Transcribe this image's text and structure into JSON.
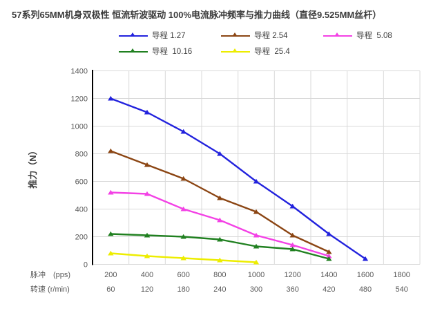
{
  "title": "57系列65MM机身双极性 恒流斩波驱动 100%电流脉冲频率与推力曲线（直径9.525MM丝杆）",
  "chart_data": {
    "type": "line",
    "title": "57系列65MM机身双极性 恒流斩波驱动 100%电流脉冲频率与推力曲线（直径9.525MM丝杆）",
    "ylabel": "推力（N）",
    "ylim": [
      0,
      1400
    ],
    "y_ticks": [
      0,
      200,
      400,
      600,
      800,
      1000,
      1200,
      1400
    ],
    "grid": true,
    "legend_position": "top",
    "x_rows": [
      {
        "label": "脉冲　(pps)",
        "ticks": [
          "200",
          "400",
          "600",
          "800",
          "1000",
          "1200",
          "1400",
          "1600",
          "1800"
        ]
      },
      {
        "label": "转速 (r/min)",
        "ticks": [
          "60",
          "120",
          "180",
          "240",
          "300",
          "360",
          "420",
          "480",
          "540"
        ]
      }
    ],
    "series": [
      {
        "name": "导程 1.27",
        "color": "#2222DD",
        "values": [
          1200,
          1100,
          960,
          800,
          600,
          420,
          220,
          40
        ]
      },
      {
        "name": "导程 2.54",
        "color": "#8B4513",
        "values": [
          820,
          720,
          620,
          480,
          380,
          210,
          90
        ]
      },
      {
        "name": "导程  5.08",
        "color": "#F341E5",
        "values": [
          520,
          510,
          400,
          320,
          210,
          140,
          60
        ]
      },
      {
        "name": "导程  10.16",
        "color": "#208020",
        "values": [
          220,
          210,
          200,
          180,
          130,
          110,
          40
        ]
      },
      {
        "name": "导程  25.4",
        "color": "#EDED00",
        "values": [
          80,
          60,
          45,
          30,
          15
        ]
      }
    ],
    "colors": {
      "gridline": "#D9D9D9",
      "axis": "#000000",
      "tick_text": "#595959",
      "title_text": "#3B3B3B"
    }
  }
}
